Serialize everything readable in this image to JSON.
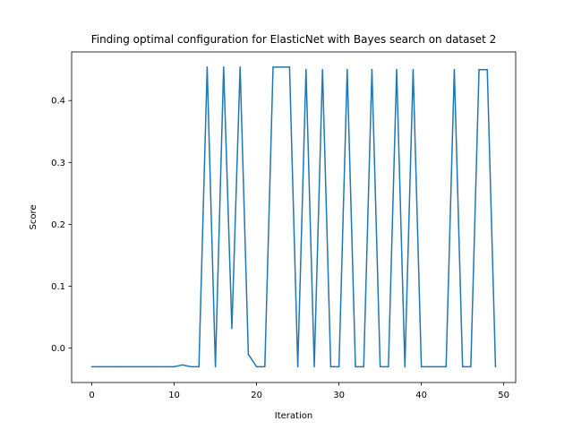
{
  "chart_data": {
    "type": "line",
    "title": "Finding optimal configuration for ElasticNet with Bayes search on dataset 2",
    "xlabel": "Iteration",
    "ylabel": "Score",
    "xlim": [
      -2.45,
      51.45
    ],
    "ylim": [
      -0.0555,
      0.4785
    ],
    "xticks": [
      0,
      10,
      20,
      30,
      40,
      50
    ],
    "yticks": [
      0.0,
      0.1,
      0.2,
      0.3,
      0.4
    ],
    "xtick_labels": [
      "0",
      "10",
      "20",
      "30",
      "40",
      "50"
    ],
    "ytick_labels": [
      "0.0",
      "0.1",
      "0.2",
      "0.3",
      "0.4"
    ],
    "grid": false,
    "series": [
      {
        "color": "#1f77b4",
        "x": [
          0,
          1,
          2,
          3,
          4,
          5,
          6,
          7,
          8,
          9,
          10,
          11,
          12,
          13,
          14,
          15,
          16,
          17,
          18,
          19,
          20,
          21,
          22,
          23,
          24,
          25,
          26,
          27,
          28,
          29,
          30,
          31,
          32,
          33,
          34,
          35,
          36,
          37,
          38,
          39,
          40,
          41,
          42,
          43,
          44,
          45,
          46,
          47,
          48,
          49
        ],
        "values": [
          -0.03,
          -0.03,
          -0.03,
          -0.03,
          -0.03,
          -0.03,
          -0.03,
          -0.03,
          -0.03,
          -0.03,
          -0.03,
          -0.027,
          -0.03,
          -0.03,
          0.454,
          -0.03,
          0.454,
          0.032,
          0.454,
          -0.01,
          -0.03,
          -0.03,
          0.454,
          0.454,
          0.454,
          -0.03,
          0.45,
          -0.03,
          0.45,
          -0.03,
          -0.03,
          0.45,
          -0.03,
          -0.03,
          0.45,
          -0.03,
          -0.03,
          0.45,
          -0.03,
          0.45,
          -0.03,
          -0.03,
          -0.03,
          -0.03,
          0.45,
          -0.03,
          -0.03,
          0.45,
          0.45,
          -0.03
        ]
      }
    ]
  }
}
